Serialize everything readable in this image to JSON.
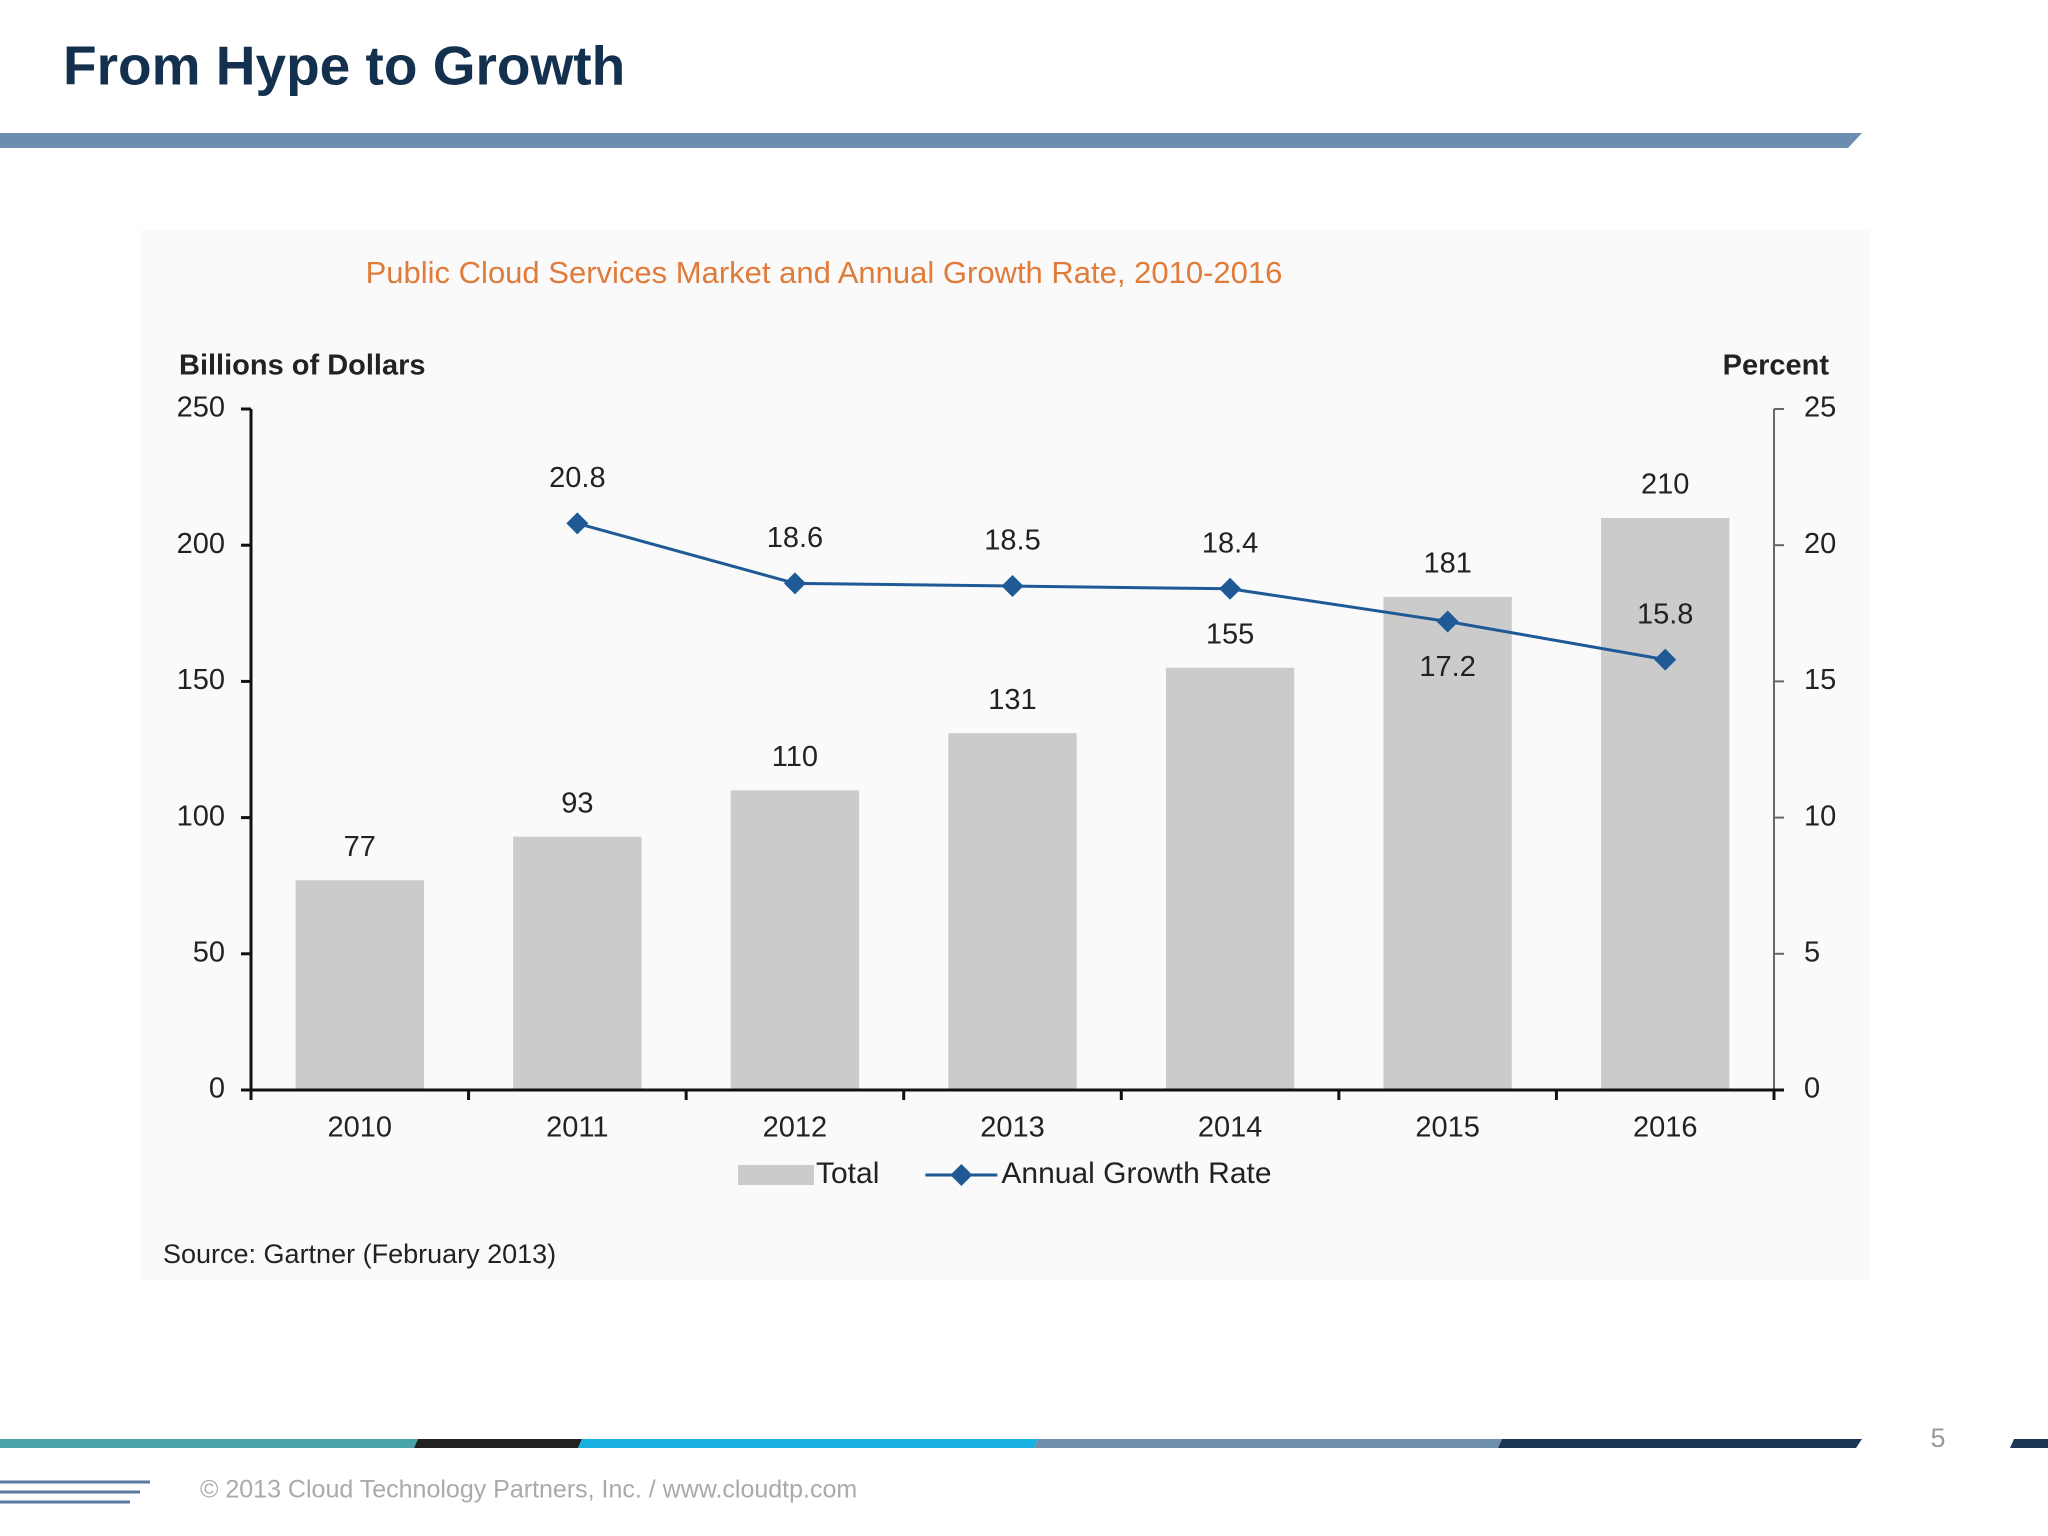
{
  "slide": {
    "title": "From Hype to Growth",
    "page_number": "5",
    "footer": "© 2013 Cloud Technology Partners, Inc.  /  www.cloudtp.com"
  },
  "chart_data": {
    "type": "bar",
    "title": "Public Cloud Services Market and Annual Growth Rate, 2010-2016",
    "y_label": "Billions of Dollars",
    "y2_label": "Percent",
    "categories": [
      "2010",
      "2011",
      "2012",
      "2013",
      "2014",
      "2015",
      "2016"
    ],
    "series": [
      {
        "name": "Total",
        "type": "bar",
        "color": "#cbcbcc",
        "values": [
          77,
          93,
          110,
          131,
          155,
          181,
          210
        ]
      },
      {
        "name": "Annual Growth Rate",
        "type": "line",
        "axis": "y2",
        "color": "#1f5a96",
        "values": [
          null,
          20.8,
          18.6,
          18.5,
          18.4,
          17.2,
          15.8
        ]
      }
    ],
    "ylim": [
      0,
      250
    ],
    "yticks": [
      0,
      50,
      100,
      150,
      200,
      250
    ],
    "y2lim": [
      0,
      25
    ],
    "y2ticks": [
      0,
      5,
      10,
      15,
      20,
      25
    ],
    "source": "Source: Gartner (February 2013)"
  }
}
